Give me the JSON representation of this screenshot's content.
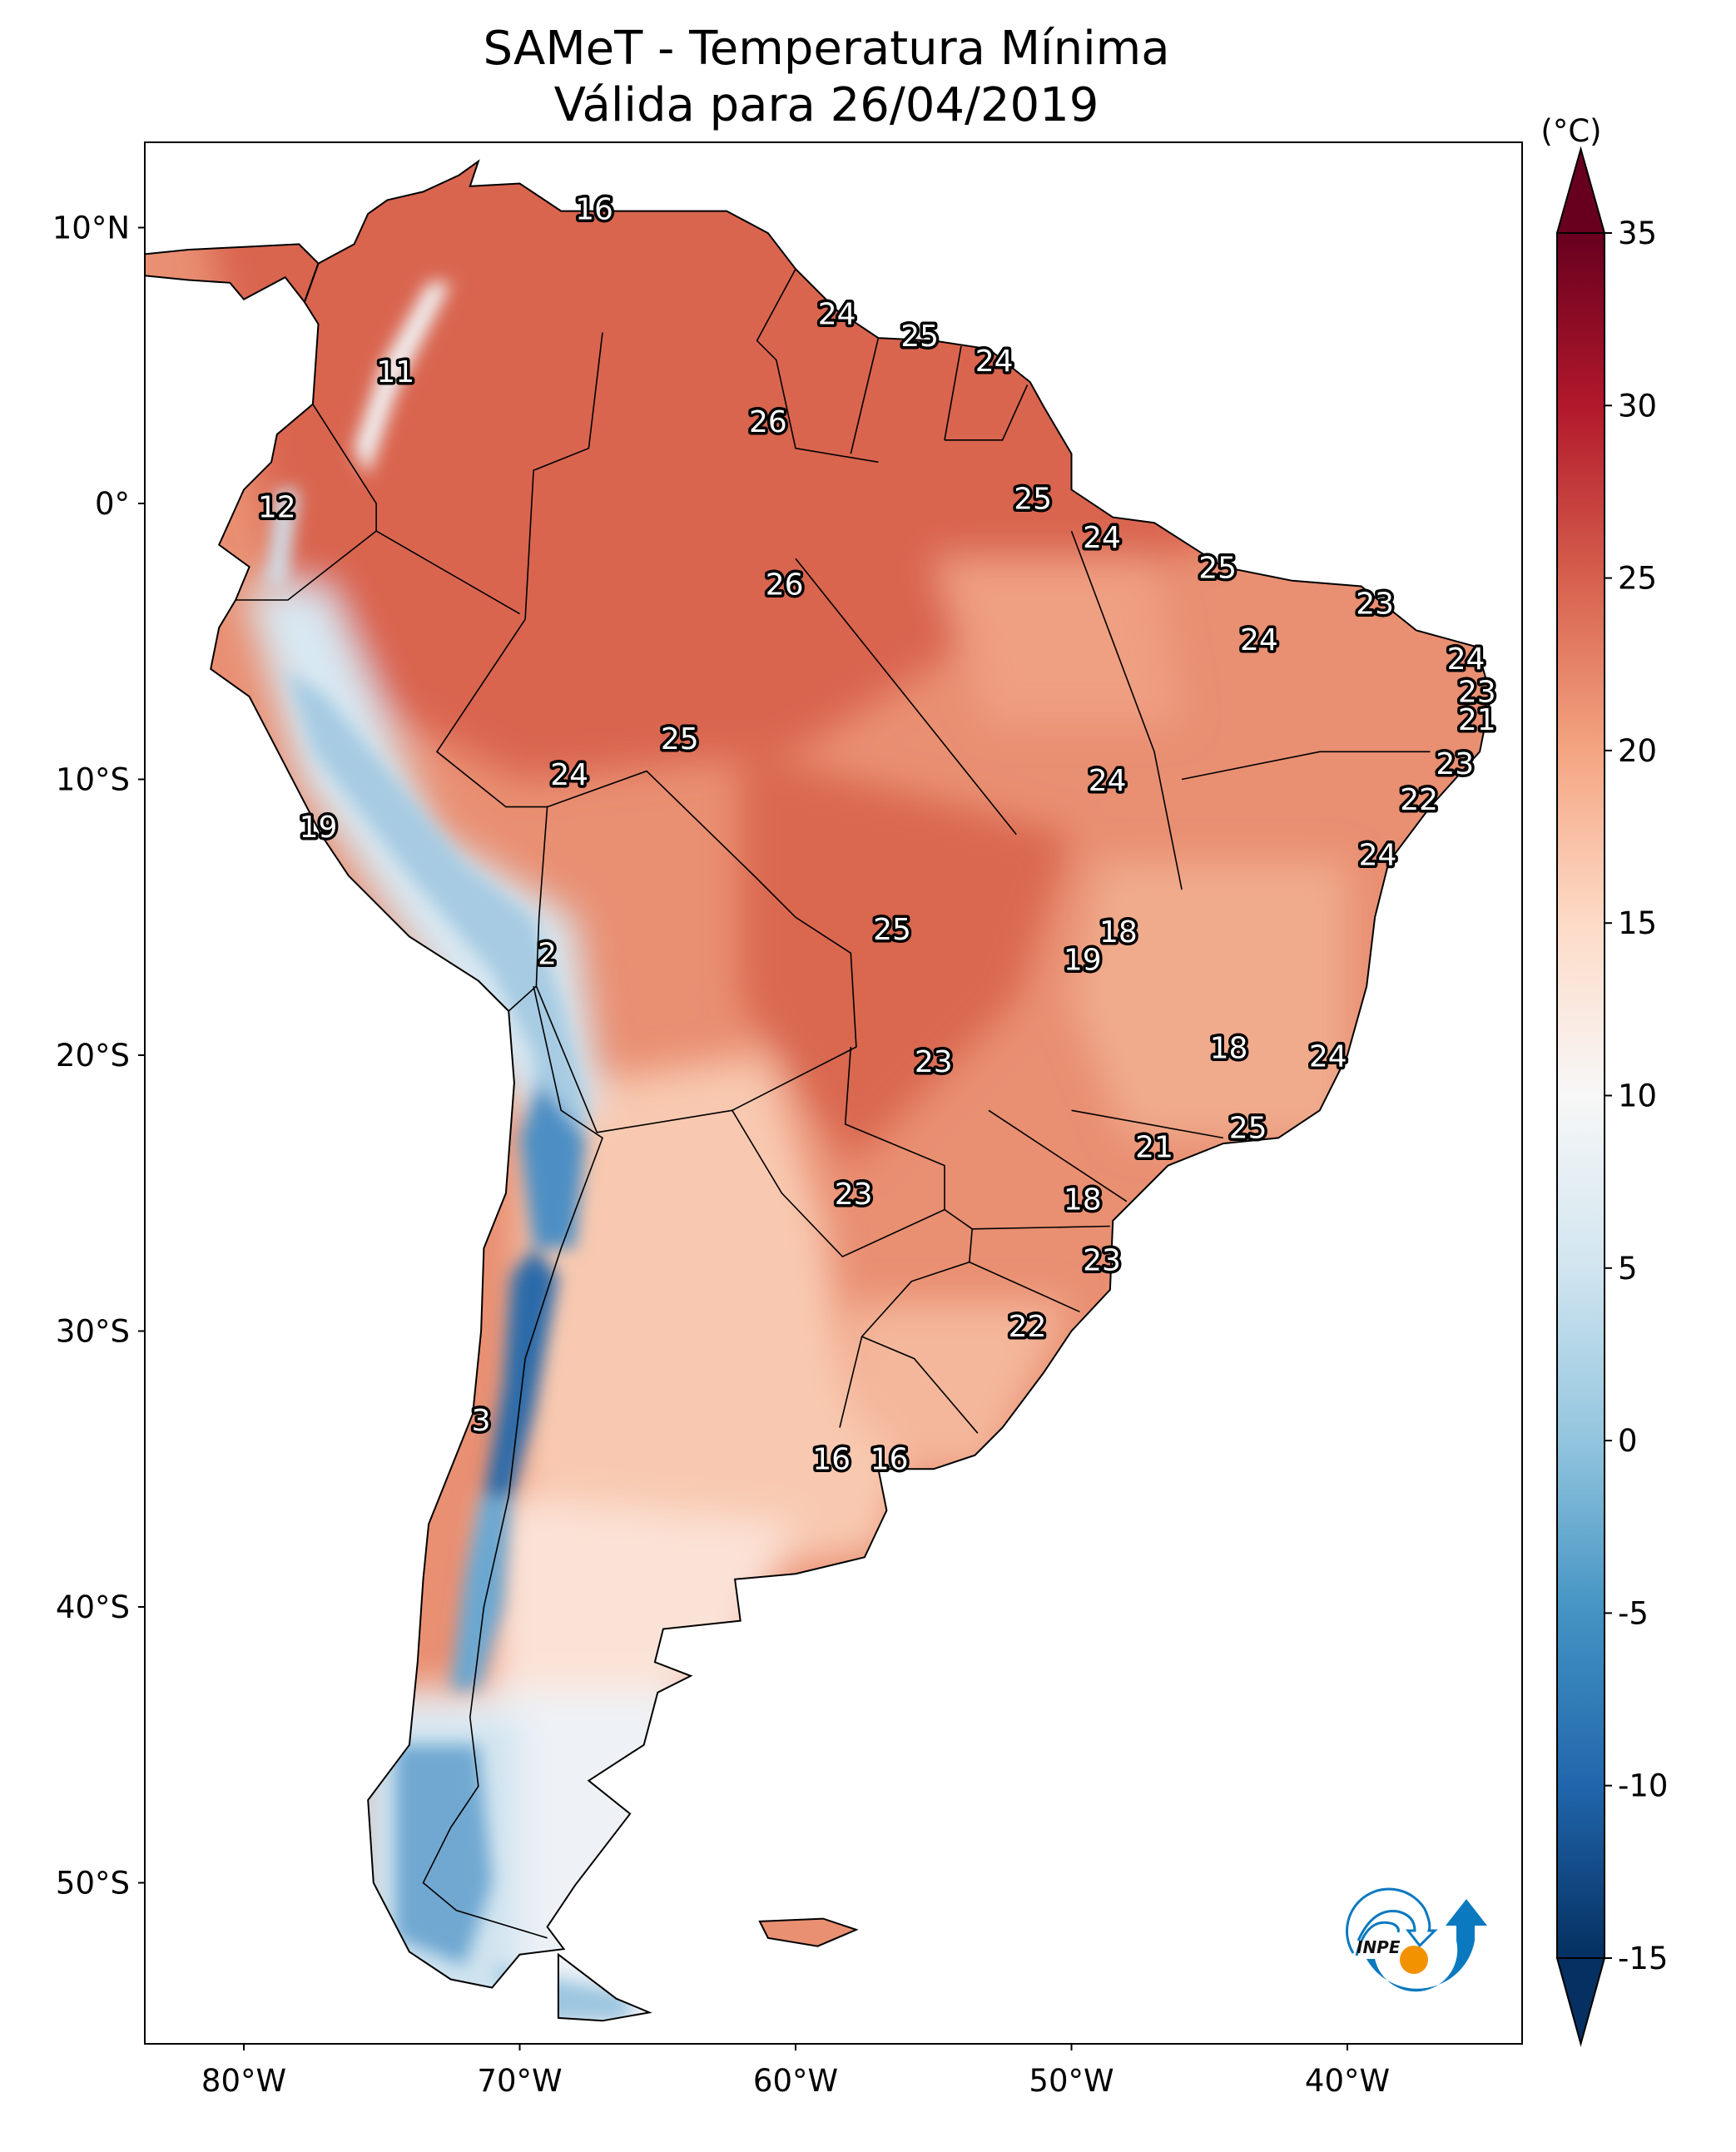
{
  "title": {
    "line1": "SAMeT - Temperatura Mínima",
    "line2": "Válida para 26/04/2019"
  },
  "map": {
    "lon_range": [
      -83,
      -34
    ],
    "lat_range": [
      -56,
      13
    ],
    "lat_ticks": [
      {
        "value": 10,
        "label": "10°N"
      },
      {
        "value": 0,
        "label": "0°"
      },
      {
        "value": -10,
        "label": "10°S"
      },
      {
        "value": -20,
        "label": "20°S"
      },
      {
        "value": -30,
        "label": "30°S"
      },
      {
        "value": -40,
        "label": "40°S"
      },
      {
        "value": -50,
        "label": "50°S"
      }
    ],
    "lon_ticks": [
      {
        "value": -80,
        "label": "80°W"
      },
      {
        "value": -70,
        "label": "70°W"
      },
      {
        "value": -60,
        "label": "60°W"
      },
      {
        "value": -50,
        "label": "50°W"
      },
      {
        "value": -40,
        "label": "40°W"
      }
    ]
  },
  "colorbar": {
    "unit": "(°C)",
    "min": -15,
    "max": 35,
    "extend": "both",
    "colormap": "RdBu_r",
    "ticks": [
      "-15",
      "-10",
      "-5",
      "0",
      "5",
      "10",
      "15",
      "20",
      "25",
      "30",
      "35"
    ],
    "colors": [
      "#053061",
      "#2166ac",
      "#4393c3",
      "#92c5de",
      "#d1e5f0",
      "#f7f7f7",
      "#fddbc7",
      "#f4a582",
      "#d6604d",
      "#b2182b",
      "#67001f"
    ]
  },
  "stations": [
    {
      "value": "16",
      "lon": -67.3,
      "lat": 10.6
    },
    {
      "value": "24",
      "lon": -58.5,
      "lat": 6.8
    },
    {
      "value": "25",
      "lon": -55.5,
      "lat": 6.0
    },
    {
      "value": "24",
      "lon": -52.8,
      "lat": 5.1
    },
    {
      "value": "11",
      "lon": -74.5,
      "lat": 4.7
    },
    {
      "value": "26",
      "lon": -61.0,
      "lat": 2.9
    },
    {
      "value": "12",
      "lon": -78.8,
      "lat": -0.2
    },
    {
      "value": "25",
      "lon": -51.4,
      "lat": 0.1
    },
    {
      "value": "24",
      "lon": -48.9,
      "lat": -1.3
    },
    {
      "value": "25",
      "lon": -44.7,
      "lat": -2.4
    },
    {
      "value": "26",
      "lon": -60.4,
      "lat": -3.0
    },
    {
      "value": "23",
      "lon": -39.0,
      "lat": -3.7
    },
    {
      "value": "24",
      "lon": -43.2,
      "lat": -5.0
    },
    {
      "value": "24",
      "lon": -35.7,
      "lat": -5.7
    },
    {
      "value": "23",
      "lon": -35.3,
      "lat": -6.9
    },
    {
      "value": "21",
      "lon": -35.3,
      "lat": -7.9
    },
    {
      "value": "25",
      "lon": -64.2,
      "lat": -8.6
    },
    {
      "value": "23",
      "lon": -36.1,
      "lat": -9.5
    },
    {
      "value": "24",
      "lon": -68.2,
      "lat": -9.9
    },
    {
      "value": "24",
      "lon": -48.7,
      "lat": -10.1
    },
    {
      "value": "22",
      "lon": -37.4,
      "lat": -10.8
    },
    {
      "value": "19",
      "lon": -77.3,
      "lat": -11.8
    },
    {
      "value": "24",
      "lon": -38.9,
      "lat": -12.8
    },
    {
      "value": "25",
      "lon": -56.5,
      "lat": -15.5
    },
    {
      "value": "18",
      "lon": -48.3,
      "lat": -15.6
    },
    {
      "value": "2",
      "lon": -69.0,
      "lat": -16.4
    },
    {
      "value": "19",
      "lon": -49.6,
      "lat": -16.6
    },
    {
      "value": "18",
      "lon": -44.3,
      "lat": -19.8
    },
    {
      "value": "23",
      "lon": -55.0,
      "lat": -20.3
    },
    {
      "value": "24",
      "lon": -40.7,
      "lat": -20.1
    },
    {
      "value": "25",
      "lon": -43.6,
      "lat": -22.7
    },
    {
      "value": "21",
      "lon": -47.0,
      "lat": -23.4
    },
    {
      "value": "23",
      "lon": -57.9,
      "lat": -25.1
    },
    {
      "value": "18",
      "lon": -49.6,
      "lat": -25.3
    },
    {
      "value": "23",
      "lon": -48.9,
      "lat": -27.5
    },
    {
      "value": "22",
      "lon": -51.6,
      "lat": -29.9
    },
    {
      "value": "3",
      "lon": -71.4,
      "lat": -33.3
    },
    {
      "value": "16",
      "lon": -58.7,
      "lat": -34.7
    },
    {
      "value": "16",
      "lon": -56.6,
      "lat": -34.7
    }
  ],
  "logo": {
    "text": "INPE",
    "blue": "#0a79bf",
    "orange": "#f39200"
  }
}
